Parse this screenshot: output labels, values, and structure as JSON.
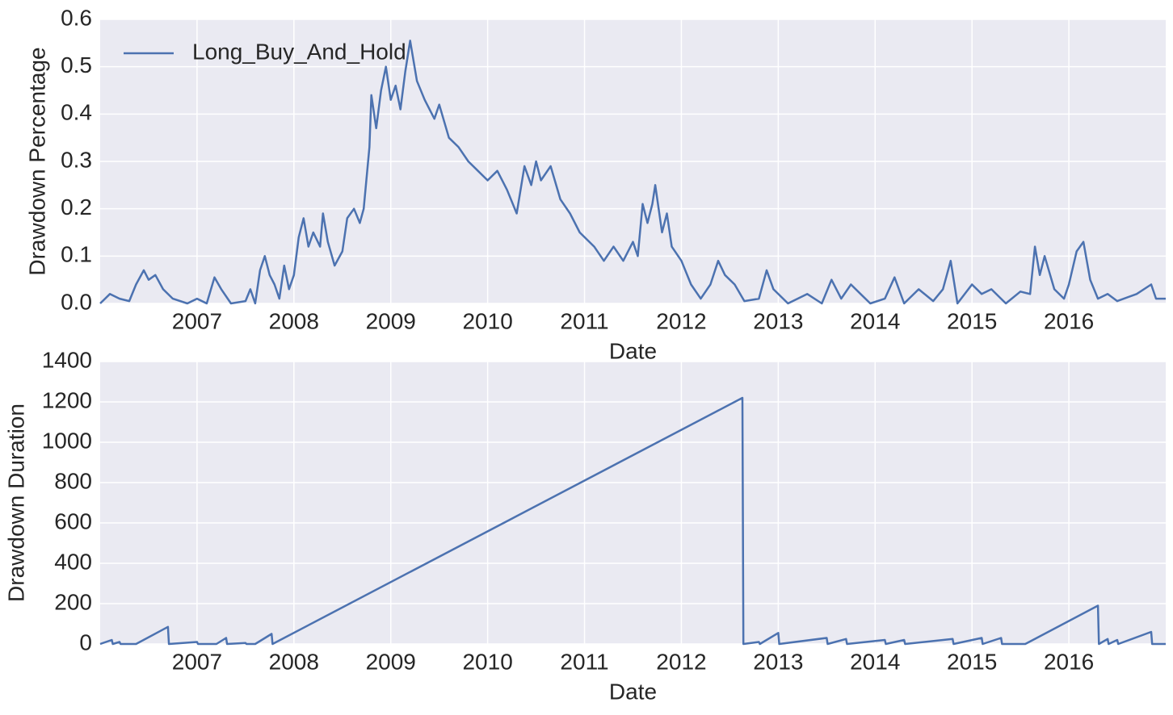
{
  "chart_data": [
    {
      "type": "line",
      "xlabel": "Date",
      "ylabel": "Drawdown Percentage",
      "x": [
        2006.0,
        2006.1,
        2006.2,
        2006.3,
        2006.37,
        2006.45,
        2006.5,
        2006.57,
        2006.65,
        2006.75,
        2006.9,
        2007.0,
        2007.1,
        2007.18,
        2007.25,
        2007.35,
        2007.5,
        2007.55,
        2007.6,
        2007.65,
        2007.7,
        2007.75,
        2007.8,
        2007.85,
        2007.9,
        2007.95,
        2008.0,
        2008.05,
        2008.1,
        2008.15,
        2008.2,
        2008.27,
        2008.3,
        2008.35,
        2008.42,
        2008.5,
        2008.55,
        2008.62,
        2008.68,
        2008.72,
        2008.78,
        2008.8,
        2008.85,
        2008.9,
        2008.95,
        2009.0,
        2009.05,
        2009.1,
        2009.15,
        2009.2,
        2009.27,
        2009.35,
        2009.45,
        2009.5,
        2009.6,
        2009.7,
        2009.8,
        2009.9,
        2010.0,
        2010.1,
        2010.2,
        2010.3,
        2010.38,
        2010.45,
        2010.5,
        2010.55,
        2010.65,
        2010.75,
        2010.85,
        2010.95,
        2011.1,
        2011.2,
        2011.3,
        2011.4,
        2011.5,
        2011.55,
        2011.6,
        2011.65,
        2011.7,
        2011.73,
        2011.8,
        2011.85,
        2011.9,
        2012.0,
        2012.1,
        2012.2,
        2012.3,
        2012.38,
        2012.45,
        2012.55,
        2012.65,
        2012.8,
        2012.88,
        2012.95,
        2013.1,
        2013.3,
        2013.45,
        2013.55,
        2013.65,
        2013.75,
        2013.85,
        2013.95,
        2014.1,
        2014.2,
        2014.3,
        2014.45,
        2014.6,
        2014.7,
        2014.78,
        2014.85,
        2015.0,
        2015.1,
        2015.2,
        2015.35,
        2015.5,
        2015.6,
        2015.65,
        2015.7,
        2015.75,
        2015.85,
        2015.95,
        2016.0,
        2016.08,
        2016.15,
        2016.22,
        2016.3,
        2016.4,
        2016.5,
        2016.7,
        2016.85,
        2016.9,
        2017.0
      ],
      "series": [
        {
          "name": "Long_Buy_And_Hold",
          "color": "#4c72b0",
          "values": [
            0,
            0.02,
            0.01,
            0.005,
            0.04,
            0.07,
            0.05,
            0.06,
            0.03,
            0.01,
            0,
            0.01,
            0,
            0.055,
            0.03,
            0,
            0.005,
            0.03,
            0,
            0.07,
            0.1,
            0.06,
            0.04,
            0.01,
            0.08,
            0.03,
            0.06,
            0.14,
            0.18,
            0.12,
            0.15,
            0.12,
            0.19,
            0.13,
            0.08,
            0.11,
            0.18,
            0.2,
            0.17,
            0.2,
            0.33,
            0.44,
            0.37,
            0.45,
            0.5,
            0.43,
            0.46,
            0.41,
            0.49,
            0.555,
            0.47,
            0.43,
            0.39,
            0.42,
            0.35,
            0.33,
            0.3,
            0.28,
            0.26,
            0.28,
            0.24,
            0.19,
            0.29,
            0.25,
            0.3,
            0.26,
            0.29,
            0.22,
            0.19,
            0.15,
            0.12,
            0.09,
            0.12,
            0.09,
            0.13,
            0.1,
            0.21,
            0.17,
            0.21,
            0.25,
            0.15,
            0.19,
            0.12,
            0.09,
            0.04,
            0.01,
            0.04,
            0.09,
            0.06,
            0.04,
            0.005,
            0.01,
            0.07,
            0.03,
            0,
            0.02,
            0,
            0.05,
            0.01,
            0.04,
            0.02,
            0,
            0.01,
            0.055,
            0,
            0.03,
            0.005,
            0.03,
            0.09,
            0,
            0.04,
            0.02,
            0.03,
            0,
            0.025,
            0.02,
            0.12,
            0.06,
            0.1,
            0.03,
            0.01,
            0.04,
            0.11,
            0.13,
            0.05,
            0.01,
            0.02,
            0.005,
            0.02,
            0.04,
            0.01,
            0.01
          ]
        }
      ],
      "xlim": [
        2006.0,
        2017.0
      ],
      "xticks": [
        2007,
        2008,
        2009,
        2010,
        2011,
        2012,
        2013,
        2014,
        2015,
        2016
      ],
      "ylim": [
        0,
        0.6
      ],
      "yticks": [
        {
          "value": 0,
          "label": "0.0"
        },
        0.1,
        0.2,
        0.3,
        0.4,
        0.5,
        0.6
      ],
      "grid": true,
      "legend": "upper left"
    },
    {
      "type": "line",
      "xlabel": "Date",
      "ylabel": "Drawdown Duration",
      "x": [
        2006.0,
        2006.12,
        2006.13,
        2006.2,
        2006.21,
        2006.37,
        2006.7,
        2006.71,
        2007.0,
        2007.01,
        2007.2,
        2007.3,
        2007.31,
        2007.5,
        2007.51,
        2007.6,
        2007.77,
        2007.78,
        2012.63,
        2012.64,
        2012.8,
        2012.81,
        2013.0,
        2013.01,
        2013.5,
        2013.51,
        2013.7,
        2013.71,
        2014.1,
        2014.11,
        2014.3,
        2014.31,
        2014.8,
        2014.81,
        2015.1,
        2015.11,
        2015.3,
        2015.31,
        2015.55,
        2016.3,
        2016.31,
        2016.4,
        2016.41,
        2016.5,
        2016.51,
        2016.85,
        2016.86,
        2017.0
      ],
      "series": [
        {
          "color": "#4c72b0",
          "values": [
            0,
            20,
            0,
            10,
            0,
            0,
            85,
            0,
            10,
            0,
            0,
            30,
            0,
            5,
            0,
            0,
            50,
            0,
            1220,
            0,
            10,
            0,
            55,
            0,
            30,
            0,
            25,
            0,
            20,
            0,
            20,
            0,
            25,
            0,
            30,
            0,
            30,
            0,
            0,
            190,
            0,
            25,
            0,
            20,
            0,
            60,
            0,
            0
          ]
        }
      ],
      "xlim": [
        2006.0,
        2017.0
      ],
      "xticks": [
        2007,
        2008,
        2009,
        2010,
        2011,
        2012,
        2013,
        2014,
        2015,
        2016
      ],
      "ylim": [
        0,
        1400
      ],
      "yticks": [
        0,
        200,
        400,
        600,
        800,
        1000,
        1200,
        1400
      ],
      "grid": true
    }
  ]
}
